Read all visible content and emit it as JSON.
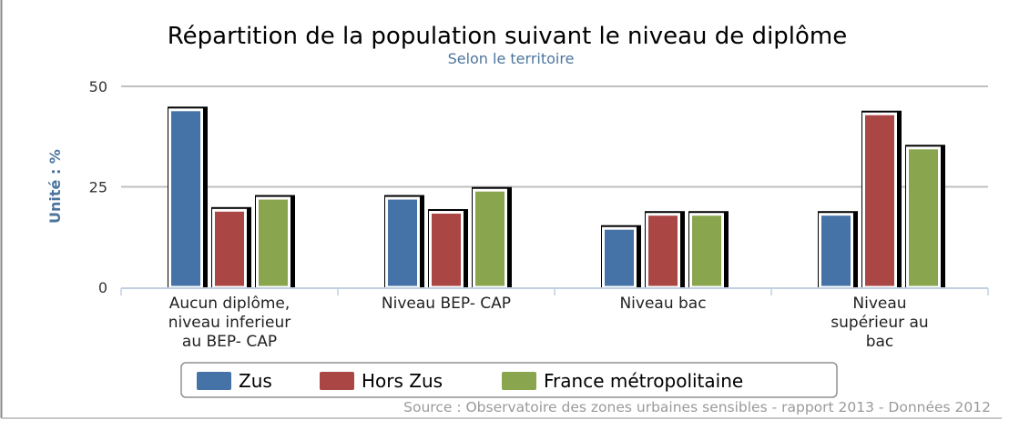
{
  "chart_data": {
    "type": "bar",
    "title": "Répartition de la population suivant le niveau de diplôme",
    "subtitle": "Selon le territoire",
    "ylabel": "Unité : %",
    "ylim": [
      0,
      50
    ],
    "yticks": [
      0,
      25,
      50
    ],
    "categories": [
      [
        "Aucun diplôme,",
        "niveau inferieur",
        "au BEP- CAP"
      ],
      [
        "Niveau BEP- CAP"
      ],
      [
        "Niveau bac"
      ],
      [
        "Niveau",
        "supérieur au",
        "bac"
      ]
    ],
    "series": [
      {
        "name": "Zus",
        "color": "#4572A7",
        "values": [
          44.5,
          22.5,
          15,
          18.5
        ]
      },
      {
        "name": "Hors Zus",
        "color": "#AA4643",
        "values": [
          19.5,
          19,
          18.5,
          43.5
        ]
      },
      {
        "name": "France métropolitaine",
        "color": "#89A54E",
        "values": [
          22.5,
          24.5,
          18.5,
          35
        ]
      }
    ],
    "grid": true,
    "legend": "bottom",
    "source": "Source : Observatoire des zones urbaines sensibles - rapport 2013 - Données 2012"
  }
}
